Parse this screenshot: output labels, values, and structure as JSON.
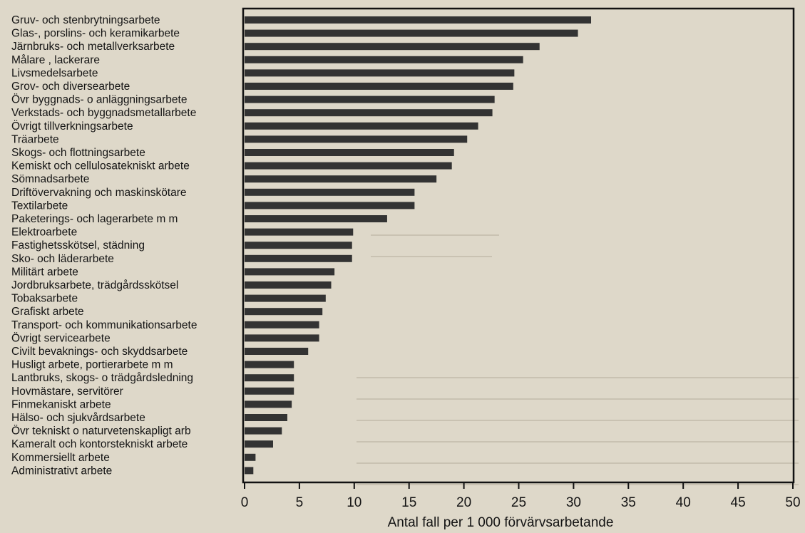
{
  "chart_data": {
    "type": "bar",
    "orientation": "horizontal",
    "title": "",
    "xlabel": "Antal fall per 1 000 förvärvsarbetande",
    "ylabel": "",
    "xlim": [
      0,
      50
    ],
    "xticks": [
      "0",
      "5",
      "10",
      "15",
      "20",
      "25",
      "30",
      "35",
      "40",
      "45",
      "50"
    ],
    "grid": false,
    "bar_color": "#333333",
    "categories": [
      "Gruv- och stenbrytningsarbete",
      "Glas-, porslins- och keramikarbete",
      "Järnbruks- och  metallverksarbete",
      "Målare , lackerare",
      "Livsmedelsarbete",
      "Grov- och diversearbete",
      "Övr byggnads- o anläggningsarbete",
      "Verkstads- och byggnadsmetallarbete",
      "Övrigt tillverkningsarbete",
      "Träarbete",
      "Skogs- och flottningsarbete",
      "Kemiskt och cellulosatekniskt arbete",
      "Sömnadsarbete",
      "Driftövervakning och maskinskötare",
      "Textilarbete",
      "Paketerings- och lagerarbete m m",
      "Elektroarbete",
      "Fastighetsskötsel, städning",
      "Sko- och läderarbete",
      "Militärt arbete",
      "Jordbruksarbete, trädgårdsskötsel",
      "Tobaksarbete",
      "Grafiskt arbete",
      "Transport- och kommunikationsarbete",
      "Övrigt servicearbete",
      "Civilt bevaknings- och skyddsarbete",
      "Husligt arbete, portierarbete m m",
      "Lantbruks, skogs- o trädgårdsledning",
      "Hovmästare, servitörer",
      "Finmekaniskt arbete",
      "Hälso- och sjukvårdsarbete",
      "Övr tekniskt o naturvetenskapligt arb",
      "Kameralt och kontorstekniskt arbete",
      "Kommersiellt arbete",
      "Administrativt arbete"
    ],
    "values": [
      31.6,
      30.4,
      26.9,
      25.4,
      24.6,
      24.5,
      22.8,
      22.6,
      21.3,
      20.3,
      19.1,
      18.9,
      17.5,
      15.5,
      15.5,
      13.0,
      9.9,
      9.8,
      9.8,
      8.2,
      7.9,
      7.4,
      7.1,
      6.8,
      6.8,
      5.8,
      4.5,
      4.5,
      4.5,
      4.3,
      3.9,
      3.4,
      2.6,
      1.0,
      0.8
    ]
  }
}
